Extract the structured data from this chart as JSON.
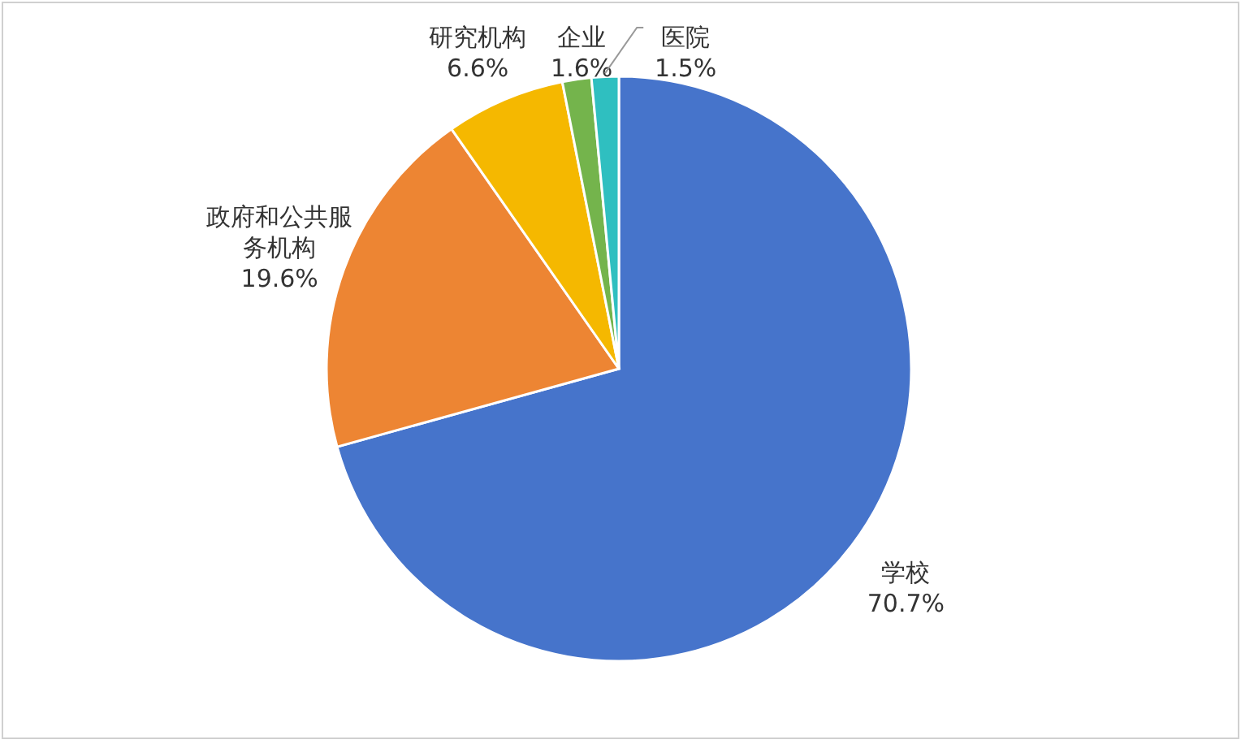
{
  "chart_data": {
    "type": "pie",
    "categories": [
      "学校",
      "政府和公共服务机构",
      "研究机构",
      "企业",
      "医院"
    ],
    "values": [
      70.7,
      19.6,
      6.6,
      1.6,
      1.5
    ],
    "colors": [
      "#4674cb",
      "#ed8533",
      "#f5b800",
      "#74b44c",
      "#2fbfc0"
    ],
    "value_labels": [
      "70.7%",
      "19.6%",
      "6.6%",
      "1.6%",
      "1.5%"
    ]
  }
}
